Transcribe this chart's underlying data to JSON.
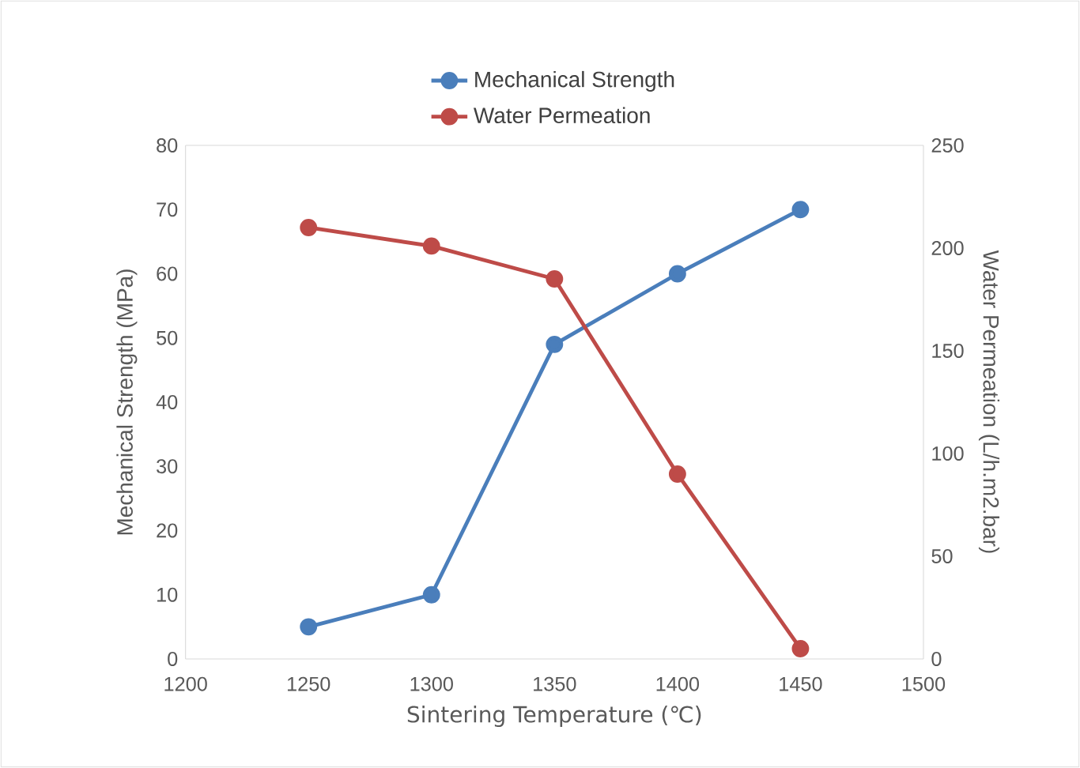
{
  "chart_data": {
    "type": "line",
    "xlabel": "Sintering Temperature (℃)",
    "ylabel": "Mechanical Strength (MPa)",
    "y2label": "Water Permeation (L/h.m2.bar)",
    "x": [
      1250,
      1300,
      1350,
      1400,
      1450
    ],
    "series": [
      {
        "name": "Mechanical Strength",
        "color": "#4a7ebb",
        "values": [
          5,
          10,
          49,
          60,
          70
        ]
      },
      {
        "name": "Water Permeation",
        "color": "#be4b48",
        "values": [
          210,
          201,
          185,
          90,
          5
        ],
        "axis": "y2"
      }
    ],
    "xlim": [
      1200,
      1500
    ],
    "xticks": [
      1200,
      1250,
      1300,
      1350,
      1400,
      1450,
      1500
    ],
    "ylim": [
      0,
      80
    ],
    "yticks": [
      0,
      10,
      20,
      30,
      40,
      50,
      60,
      70,
      80
    ],
    "y2lim": [
      0,
      250
    ],
    "y2ticks": [
      0,
      50,
      100,
      150,
      200,
      250
    ],
    "legend": "top",
    "marker": "circle",
    "line_style": "solid",
    "grid": false
  }
}
